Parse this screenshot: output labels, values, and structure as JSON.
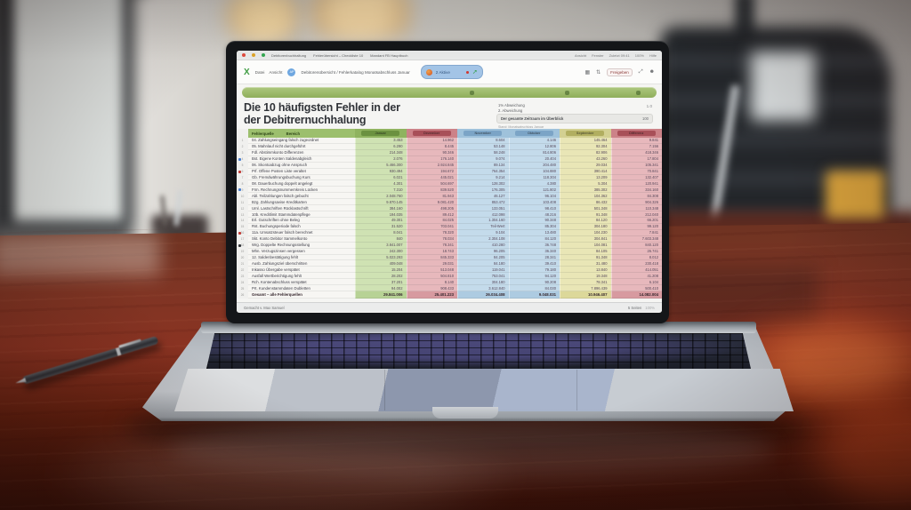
{
  "browser": {
    "traffic_lights": [
      "#df4b3e",
      "#dda428",
      "#35a852"
    ],
    "tabs": [
      "Debitorenbuchhaltung",
      "Fehlerübersicht – Checkliste 10",
      "Mandant FB Hauptbuch"
    ],
    "top_right": [
      "Ansicht",
      "Fenster",
      "Zuletzt 09:41",
      "100%",
      "Hilfe"
    ],
    "logo": "X",
    "menus": [
      "Datei",
      "Ansicht"
    ],
    "avatar": "AP",
    "doc_title": "Debitorenübersicht / Fehlerkatalog Monatsabschluss Januar",
    "collab": {
      "label": "2 Aktive",
      "trend": "➚"
    },
    "grid_icon": "▦",
    "sort_icon": "⇅",
    "share_label": "Freigeben",
    "expand_icon": "⤢",
    "profile_icon": "☻"
  },
  "sheet": {
    "title_line1": "Die 10 häufigsten Fehler in der",
    "title_line2": "der Debitrernuchhalung",
    "panel": {
      "line1": "1% Abweichung",
      "line2": "2. Abweichung",
      "value": "1.0",
      "box_label": "Der gesamte Zeitraum im Überblick",
      "box_value": "100",
      "box_sub": "Stand: Monatsabschluss Januar"
    },
    "footer_left": "Gemacht v. Max Samuel",
    "footer_right": "5 Seiten",
    "footer_right2": "100%"
  },
  "table": {
    "label_header": [
      "Fehlerquelle",
      "Bereich"
    ],
    "columns": [
      {
        "label": "Januar",
        "bg": "#cfe2b3",
        "header_bg": "#8fb35f",
        "chip_bg": "#6b9140",
        "total_bg": "#b7d295"
      },
      {
        "label": "Dezember",
        "bg": "#e7b8bc",
        "header_bg": "#cc8288",
        "chip_bg": "#a84f58",
        "total_bg": "#d79aa0"
      },
      {
        "label": "November",
        "bg": "#c4dbeb",
        "header_bg": "#9fc2db",
        "chip_bg": "#7ba4c6",
        "total_bg": "#adcbe1"
      },
      {
        "label": "Oktober",
        "bg": "#c4dbeb",
        "header_bg": "#9fc2db",
        "chip_bg": "#7ba4c6",
        "total_bg": "#adcbe1"
      },
      {
        "label": "September",
        "bg": "#e9e6b6",
        "header_bg": "#d3d092",
        "chip_bg": "#b1ae60",
        "total_bg": "#dcd89a"
      },
      {
        "label": "Differenz",
        "bg": "#e7b8bc",
        "header_bg": "#cc8288",
        "chip_bg": "#a84f58",
        "total_bg": "#d79aa0"
      }
    ],
    "rows": [
      {
        "label": "04. Zahlungseingang falsch zugeordnet",
        "values": [
          "3.453",
          "14.962",
          "8.604",
          "4.146",
          "145.464",
          "9.841"
        ]
      },
      {
        "label": "05. Mahnlauf nicht durchgeführt",
        "values": [
          "6.290",
          "8.445",
          "53.148",
          "12.806",
          "92.304",
          "7.156"
        ]
      },
      {
        "label": "Fdl. Abstimmkonto Differenzen",
        "values": [
          "214.348",
          "90.346",
          "58.248",
          "814.806",
          "82.906",
          "418.346"
        ]
      },
      {
        "label": "Bst. Eigene Konten Saldenabgleich",
        "values": [
          "2.076",
          "176.140",
          "9.074",
          "20.404",
          "43.260",
          "17.804"
        ]
      },
      {
        "label": "06. Skontoabzug ohne Anspruch",
        "values": [
          "5.466.300",
          "2.924.845",
          "89.134",
          "204.480",
          "29.034",
          "105.341"
        ]
      },
      {
        "label": "Prf. Offene Posten Liste veraltet",
        "values": [
          "930.494",
          "194.672",
          "764.354",
          "104.880",
          "390.414",
          "70.841"
        ]
      },
      {
        "label": "Gb. Fremdwährungsbuchung Kurs",
        "values": [
          "6.021",
          "445.021",
          "9.214",
          "118.304",
          "13.209",
          "132.407"
        ]
      },
      {
        "label": "08. Dauerbuchung doppelt angelegt",
        "values": [
          "4.301",
          "504.697",
          "128.302",
          "4.380",
          "5.304",
          "120.941"
        ]
      },
      {
        "label": "Frm. Rechnungsnummernkreis Lücken",
        "values": [
          "7.310",
          "839.520",
          "176.305",
          "121.802",
          "385.302",
          "334.160"
        ]
      },
      {
        "label": "Abl. Teilzahlungen falsch gebucht",
        "values": [
          "2.048.760",
          "81.943",
          "46.127",
          "96.104",
          "104.362",
          "84.308"
        ]
      },
      {
        "label": "Bzg. Zahlungsavise Kreditkarten",
        "values": [
          "9.870.145",
          "9.081.420",
          "853.472",
          "103.408",
          "86.432",
          "904.326"
        ]
      },
      {
        "label": "Uml. Lastschriften Rücklastschrift",
        "values": [
          "384.160",
          "498.205",
          "133.051",
          "98.410",
          "501.348",
          "110.348"
        ]
      },
      {
        "label": "10b. Kreditlimit Stammdatenpflege",
        "values": [
          "194.035",
          "89.412",
          "412.098",
          "48.216",
          "91.348",
          "212.040"
        ]
      },
      {
        "label": "Erl. Gutschriften ohne Beleg",
        "values": [
          "49.301",
          "84.025",
          "1.304.160",
          "90.348",
          "84.120",
          "66.201"
        ]
      },
      {
        "label": "Rst. Buchungsperiode falsch",
        "values": [
          "31.520",
          "703.041",
          "Teil-Wert",
          "85.304",
          "304.180",
          "99.120"
        ]
      },
      {
        "label": "11a. Umsatzsteuer falsch berechnet",
        "values": [
          "8.041",
          "78.320",
          "9.104",
          "13.480",
          "104.230",
          "7.841"
        ]
      },
      {
        "label": "Skt. Konto Debitor Sammelkonto",
        "values": [
          "840",
          "78.034",
          "2.304.108",
          "84.120",
          "304.841",
          "7.603.348"
        ]
      },
      {
        "label": "Wrg. Doppelte Rechnungsstellung",
        "values": [
          "3.841.007",
          "78.341",
          "410.280",
          "36.748",
          "104.081",
          "840.120"
        ]
      },
      {
        "label": "Mhn. Verzugszinsen vergessen",
        "values": [
          "242.300",
          "18.743",
          "96.205",
          "36.340",
          "84.105",
          "26.741"
        ]
      },
      {
        "label": "12. Saldenbestätigung fehlt",
        "values": [
          "5.023.293",
          "845.333",
          "84.205",
          "28.341",
          "91.348",
          "8.012"
        ]
      },
      {
        "label": "Ausb. Zahlungsziel überschritten",
        "values": [
          "409.048",
          "29.031",
          "84.180",
          "39.410",
          "31.480",
          "230.418"
        ]
      },
      {
        "label": "Inkasso Übergabe verspätet",
        "values": [
          "15.204",
          "513.048",
          "119.041",
          "79.180",
          "13.840",
          "414.051"
        ]
      },
      {
        "label": "Ausfall Wertberichtigung fehlt",
        "values": [
          "28.202",
          "504.810",
          "753.041",
          "94.120",
          "19.348",
          "41.208"
        ]
      },
      {
        "label": "Rch. Kontenabschluss verspätet",
        "values": [
          "37.201",
          "8.140",
          "304.180",
          "90.208",
          "78.341",
          "6.104"
        ]
      },
      {
        "label": "Prt. Kundenstammdaten Dubletten",
        "values": [
          "94.002",
          "908.433",
          "3.612.840",
          "84.030",
          "7.896.439",
          "500.410"
        ]
      }
    ],
    "total_row": {
      "label": "Gesamt – alle Fehlerquellen",
      "values": [
        "29.841.006",
        "25.401.223",
        "26.034.408",
        "9.048.031",
        "10.946.407",
        "14.082.004"
      ]
    },
    "gutter_dots": [
      {
        "row": 3,
        "color": "#4a7fd0"
      },
      {
        "row": 5,
        "color": "#c23a34"
      },
      {
        "row": 8,
        "color": "#4a7fd0"
      },
      {
        "row": 15,
        "color": "#c23a34"
      },
      {
        "row": 17,
        "color": "#33363a"
      }
    ]
  }
}
